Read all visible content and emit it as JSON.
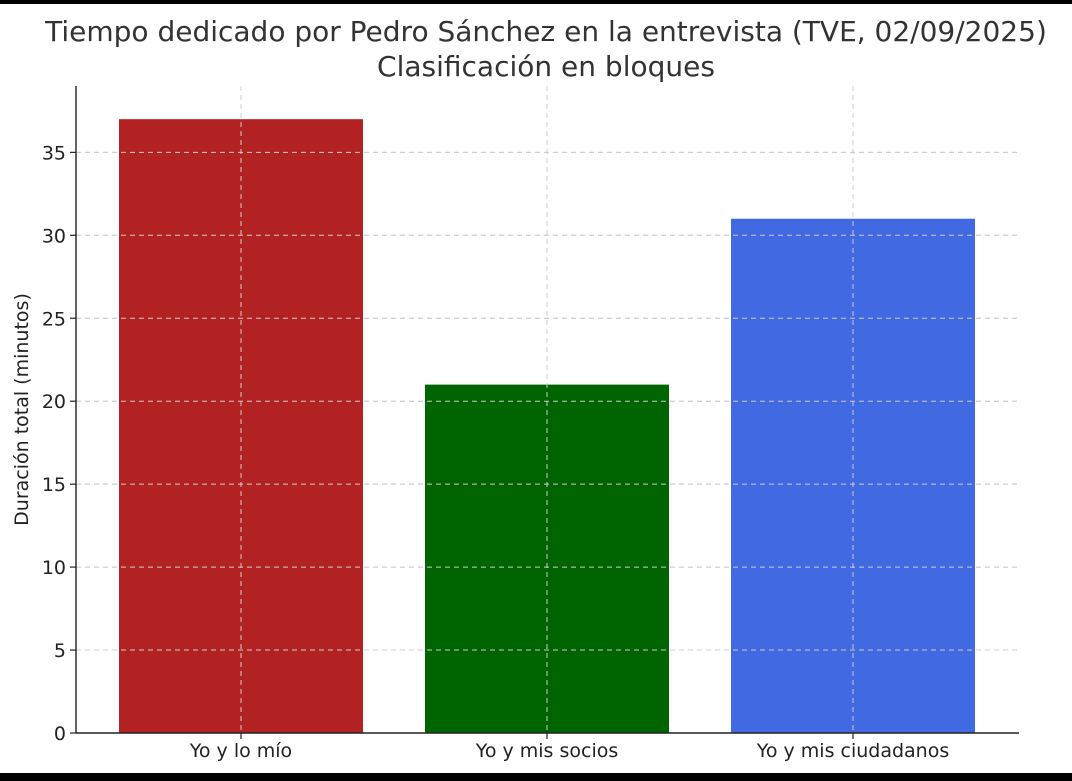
{
  "chart_data": {
    "type": "bar",
    "title": "Tiempo dedicado por Pedro Sánchez en la entrevista (TVE, 02/09/2025)",
    "subtitle": "Clasificación en bloques",
    "xlabel": "",
    "ylabel": "Duración total (minutos)",
    "categories": [
      "Yo y lo mío",
      "Yo y mis socios",
      "Yo y mis ciudadanos"
    ],
    "values": [
      37,
      21,
      31
    ],
    "colors": [
      "#b22222",
      "#006400",
      "#4169e1"
    ],
    "ylim": [
      0,
      39
    ],
    "yticks": [
      0,
      5,
      10,
      15,
      20,
      25,
      30,
      35
    ],
    "grid": true,
    "legend": "none"
  }
}
